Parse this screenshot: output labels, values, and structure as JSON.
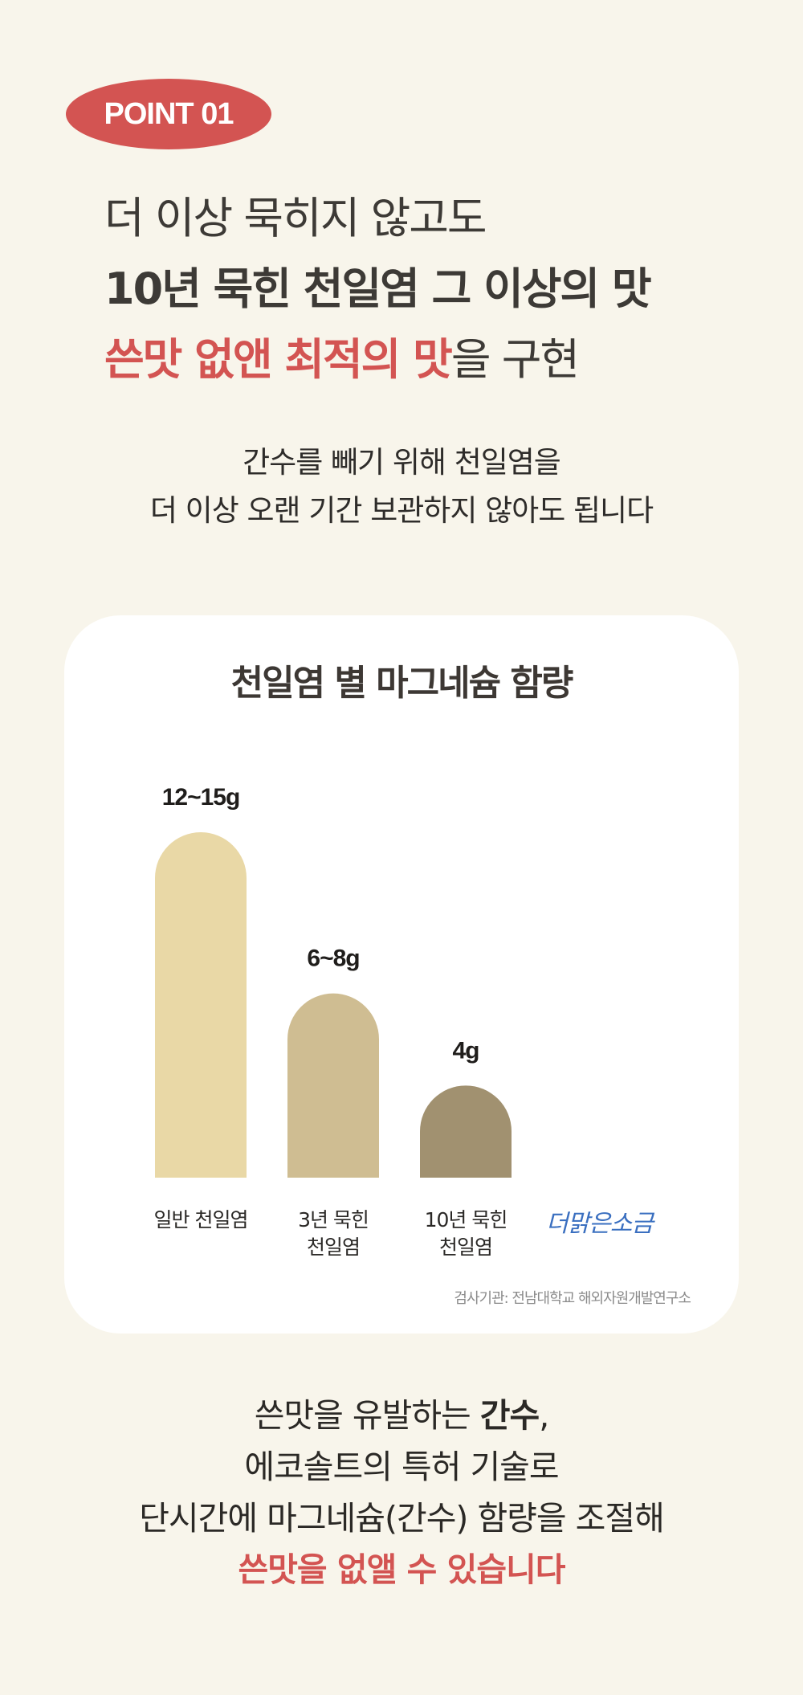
{
  "badge": "POINT 01",
  "headline": {
    "line1": "더 이상 묵히지 않고도",
    "line2": "10년 묵힌 천일염 그 이상의 맛",
    "line3_accent": "쓴맛 없앤 최적의 맛",
    "line3_rest": "을 구현"
  },
  "subtext": {
    "line1": "간수를 빼기 위해 천일염을",
    "line2": "더 이상 오랜 기간 보관하지 않아도 됩니다"
  },
  "chart_data": {
    "type": "bar",
    "title": "천일염 별 마그네슘 함량",
    "categories": [
      "일반 천일염",
      "3년 묵힌 천일염",
      "10년 묵힌 천일염",
      "더맑은소금"
    ],
    "category_lines": [
      [
        "일반 천일염"
      ],
      [
        "3년 묵힌",
        "천일염"
      ],
      [
        "10년 묵힌",
        "천일염"
      ],
      []
    ],
    "values": [
      15,
      8,
      4,
      0
    ],
    "value_labels": [
      "12~15g",
      "6~8g",
      "4g",
      ""
    ],
    "colors": [
      "#e9d8a6",
      "#cfbd92",
      "#a19170",
      "#3a6fc0"
    ],
    "ylim": [
      0,
      15
    ],
    "grid": false
  },
  "brand_logo": "더맑은소금",
  "source": "검사기관: 전남대학교 해외자원개발연구소",
  "closing": {
    "line1_pre": "쓴맛을 유발하는 ",
    "line1_bold": "간수",
    "line1_post": ",",
    "line2": "에코솔트의 특허 기술로",
    "line3": "단시간에 마그네슘(간수) 함량을 조절해",
    "line4_accent": "쓴맛을 없앨 수 있습니다"
  }
}
